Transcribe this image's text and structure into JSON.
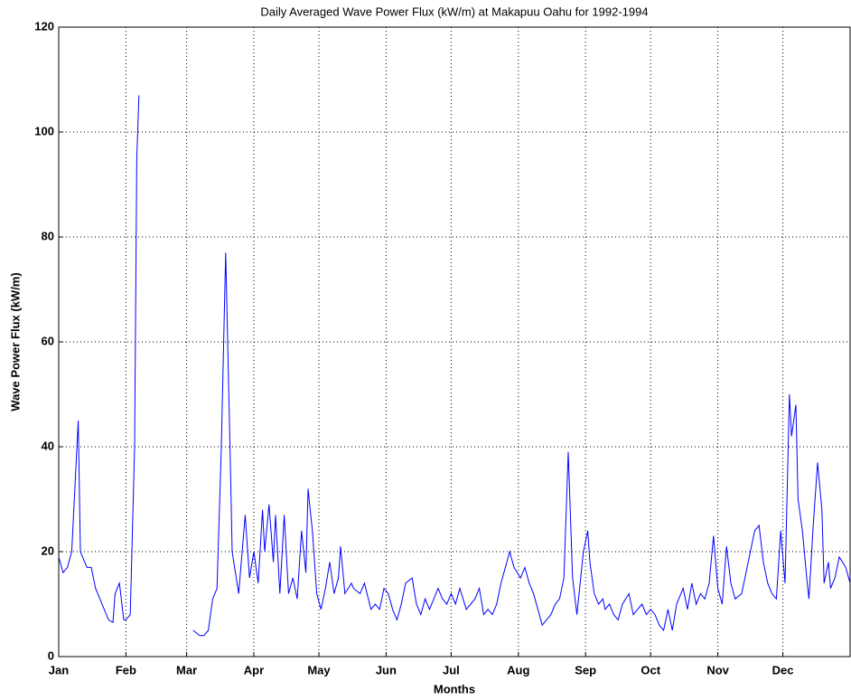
{
  "chart_data": {
    "type": "line",
    "title": "Daily Averaged Wave Power Flux (kW/m) at Makapuu Oahu for 1992-1994",
    "xlabel": "Months",
    "ylabel": "Wave Power Flux (kW/m)",
    "x": [
      1,
      3,
      5,
      7,
      10,
      11,
      14,
      16,
      18,
      20,
      22,
      24,
      26,
      27,
      29,
      31,
      32,
      34,
      36,
      37,
      38,
      50,
      63,
      66,
      68,
      70,
      72,
      74,
      76,
      78,
      80,
      81,
      84,
      86,
      87,
      89,
      91,
      93,
      95,
      96,
      98,
      100,
      101,
      103,
      105,
      107,
      109,
      111,
      113,
      115,
      116,
      118,
      120,
      122,
      124,
      126,
      128,
      130,
      131,
      133,
      136,
      137,
      140,
      142,
      145,
      147,
      149,
      151,
      153,
      155,
      157,
      159,
      161,
      164,
      166,
      168,
      170,
      172,
      174,
      176,
      178,
      180,
      182,
      184,
      186,
      189,
      191,
      193,
      195,
      197,
      199,
      201,
      203,
      205,
      207,
      209,
      211,
      214,
      216,
      218,
      220,
      222,
      224,
      226,
      228,
      230,
      232,
      234,
      236,
      238,
      240,
      241,
      243,
      245,
      246,
      248,
      250,
      252,
      253,
      255,
      257,
      259,
      261,
      264,
      266,
      268,
      270,
      272,
      274,
      276,
      278,
      280,
      282,
      284,
      286,
      289,
      291,
      293,
      295,
      297,
      299,
      301,
      303,
      305,
      307,
      309,
      311,
      313,
      316,
      318,
      320,
      322,
      324,
      326,
      328,
      330,
      332,
      334,
      336,
      338,
      339,
      341,
      342,
      344,
      346,
      347,
      349,
      351,
      353,
      354,
      356,
      357,
      359,
      361,
      364,
      366
    ],
    "series": [
      {
        "name": "Wave Power Flux",
        "color": "#0000ff",
        "values": [
          19,
          16,
          17,
          20,
          45,
          20,
          17,
          17,
          13,
          11,
          9,
          7,
          6.5,
          12,
          14,
          7,
          7,
          8,
          40,
          95,
          107,
          null,
          5,
          4,
          4,
          5,
          11,
          13,
          40,
          77,
          40,
          20,
          12,
          22,
          27,
          15,
          20,
          14,
          28,
          20,
          29,
          18,
          27,
          12,
          27,
          12,
          15,
          11,
          24,
          16,
          32,
          24,
          12,
          9,
          13,
          18,
          12,
          15,
          21,
          12,
          14,
          13,
          12,
          14,
          9,
          10,
          9,
          13,
          12,
          9,
          7,
          10,
          14,
          15,
          10,
          8,
          11,
          9,
          11,
          13,
          11,
          10,
          12,
          10,
          13,
          9,
          10,
          11,
          13,
          8,
          9,
          8,
          10,
          14,
          17,
          20,
          17,
          15,
          17,
          14,
          12,
          9,
          6,
          7,
          8,
          10,
          11,
          15,
          39,
          15,
          8,
          12,
          20,
          24,
          18,
          12,
          10,
          11,
          9,
          10,
          8,
          7,
          10,
          12,
          8,
          9,
          10,
          8,
          9,
          8,
          6,
          5,
          9,
          5,
          10,
          13,
          9,
          14,
          10,
          12,
          11,
          14,
          23,
          13,
          10,
          21,
          14,
          11,
          12,
          16,
          20,
          24,
          25,
          18,
          14,
          12,
          11,
          24,
          14,
          50,
          42,
          48,
          30,
          24,
          15,
          11,
          25,
          37,
          28,
          14,
          18,
          13,
          15,
          19,
          17,
          14
        ]
      }
    ],
    "xlim": [
      1,
      366
    ],
    "xticks": [
      {
        "value": 1,
        "label": "Jan"
      },
      {
        "value": 32,
        "label": "Feb"
      },
      {
        "value": 60,
        "label": "Mar"
      },
      {
        "value": 91,
        "label": "Apr"
      },
      {
        "value": 121,
        "label": "May"
      },
      {
        "value": 152,
        "label": "Jun"
      },
      {
        "value": 182,
        "label": "Jul"
      },
      {
        "value": 213,
        "label": "Aug"
      },
      {
        "value": 244,
        "label": "Sep"
      },
      {
        "value": 274,
        "label": "Oct"
      },
      {
        "value": 305,
        "label": "Nov"
      },
      {
        "value": 335,
        "label": "Dec"
      }
    ],
    "ylim": [
      0,
      120
    ],
    "yticks": [
      0,
      20,
      40,
      60,
      80,
      100,
      120
    ],
    "grid": true
  }
}
